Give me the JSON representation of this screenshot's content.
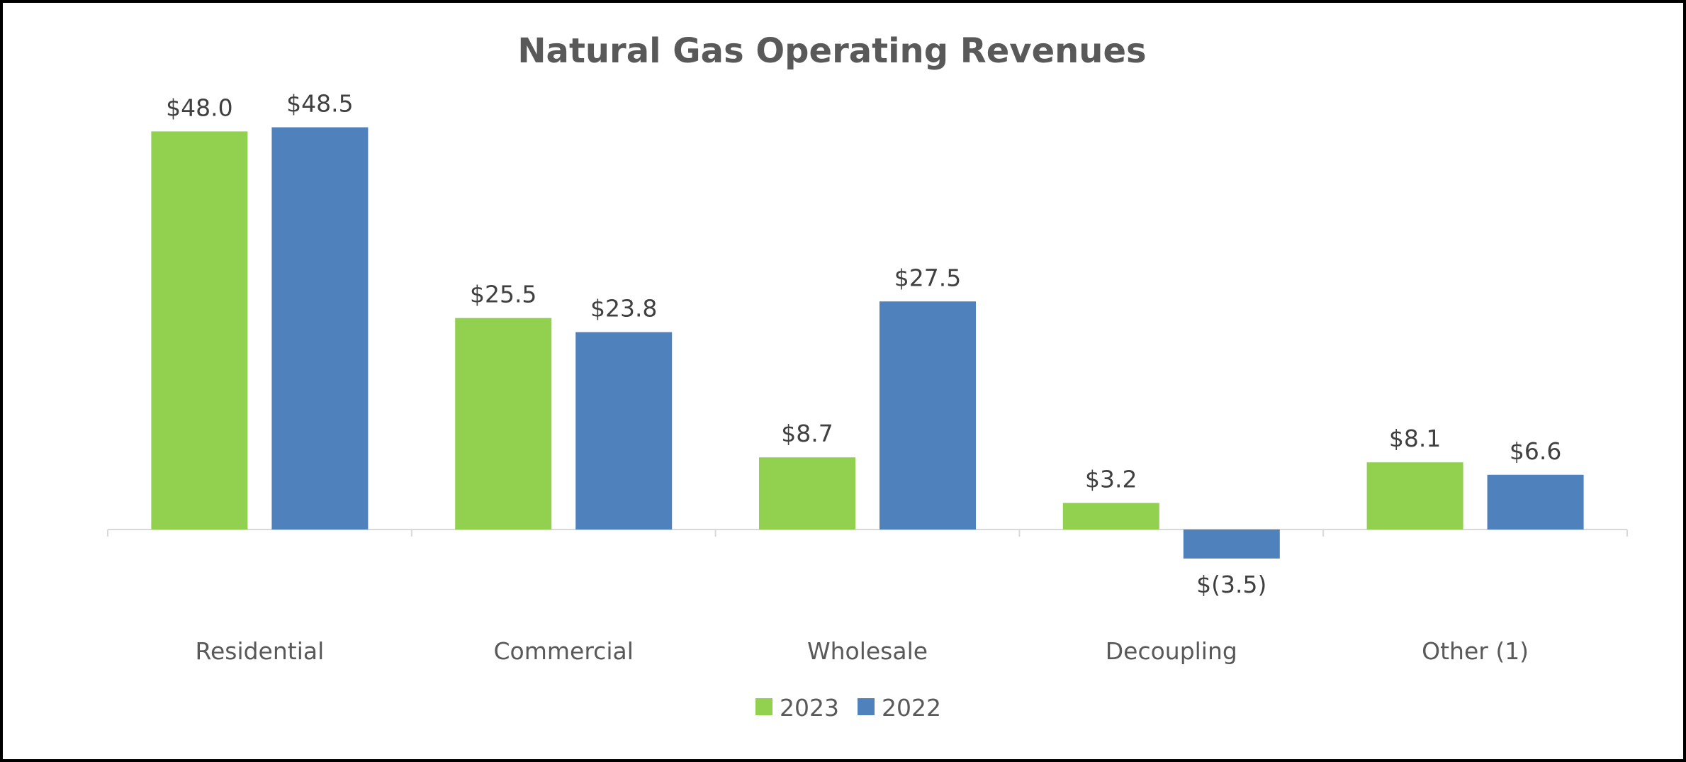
{
  "chart_data": {
    "type": "bar",
    "title": "Natural Gas Operating Revenues",
    "xlabel": "",
    "ylabel": "",
    "categories": [
      "Residential",
      "Commercial",
      "Wholesale",
      "Decoupling",
      "Other (1)"
    ],
    "series": [
      {
        "name": "2023",
        "color": "#92D050",
        "values": [
          48.0,
          25.5,
          8.7,
          3.2,
          8.1
        ],
        "labels": [
          "$48.0",
          "$25.5",
          "$8.7",
          "$3.2",
          "$8.1"
        ]
      },
      {
        "name": "2022",
        "color": "#4F81BD",
        "values": [
          48.5,
          23.8,
          27.5,
          -3.5,
          6.6
        ],
        "labels": [
          "$48.5",
          "$23.8",
          "$27.5",
          "$(3.5)",
          "$6.6"
        ]
      }
    ],
    "ylim": [
      -5,
      50
    ],
    "grid": false,
    "legend_position": "bottom"
  }
}
